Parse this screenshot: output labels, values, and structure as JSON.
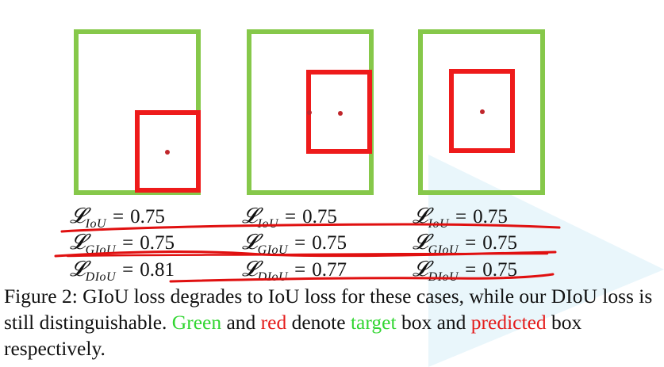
{
  "figure": {
    "panels": [
      {
        "losses": [
          {
            "symbol": "𝓛",
            "subscript": "IoU",
            "eq": "=",
            "value": "0.75"
          },
          {
            "symbol": "𝓛",
            "subscript": "GIoU",
            "eq": "=",
            "value": "0.75"
          },
          {
            "symbol": "𝓛",
            "subscript": "DIoU",
            "eq": "=",
            "value": "0.81"
          }
        ]
      },
      {
        "losses": [
          {
            "symbol": "𝓛",
            "subscript": "IoU",
            "eq": "=",
            "value": "0.75"
          },
          {
            "symbol": "𝓛",
            "subscript": "GIoU",
            "eq": "=",
            "value": "0.75"
          },
          {
            "symbol": "𝓛",
            "subscript": "DIoU",
            "eq": "=",
            "value": "0.77"
          }
        ]
      },
      {
        "losses": [
          {
            "symbol": "𝓛",
            "subscript": "IoU",
            "eq": "=",
            "value": "0.75"
          },
          {
            "symbol": "𝓛",
            "subscript": "GIoU",
            "eq": "=",
            "value": "0.75"
          },
          {
            "symbol": "𝓛",
            "subscript": "DIoU",
            "eq": "=",
            "value": "0.75"
          }
        ]
      }
    ],
    "colors": {
      "target_box": "#86c84a",
      "predicted_box": "#ee1b1b",
      "center_dot": "#c0262b",
      "annotation_line": "#e01010",
      "caption_green": "#32d632",
      "caption_red": "#e41c1c",
      "background_triangle": "#e8f5fb"
    },
    "caption": {
      "part1": "Figure 2: GIoU loss degrades to IoU loss for these cases, while our DIoU loss is still distinguishable. ",
      "green": "Green",
      "part2": " and ",
      "red": "red",
      "part3": " denote ",
      "target": "target",
      "part4": " box and ",
      "predicted": "predicted",
      "part5": " box respectively."
    }
  }
}
